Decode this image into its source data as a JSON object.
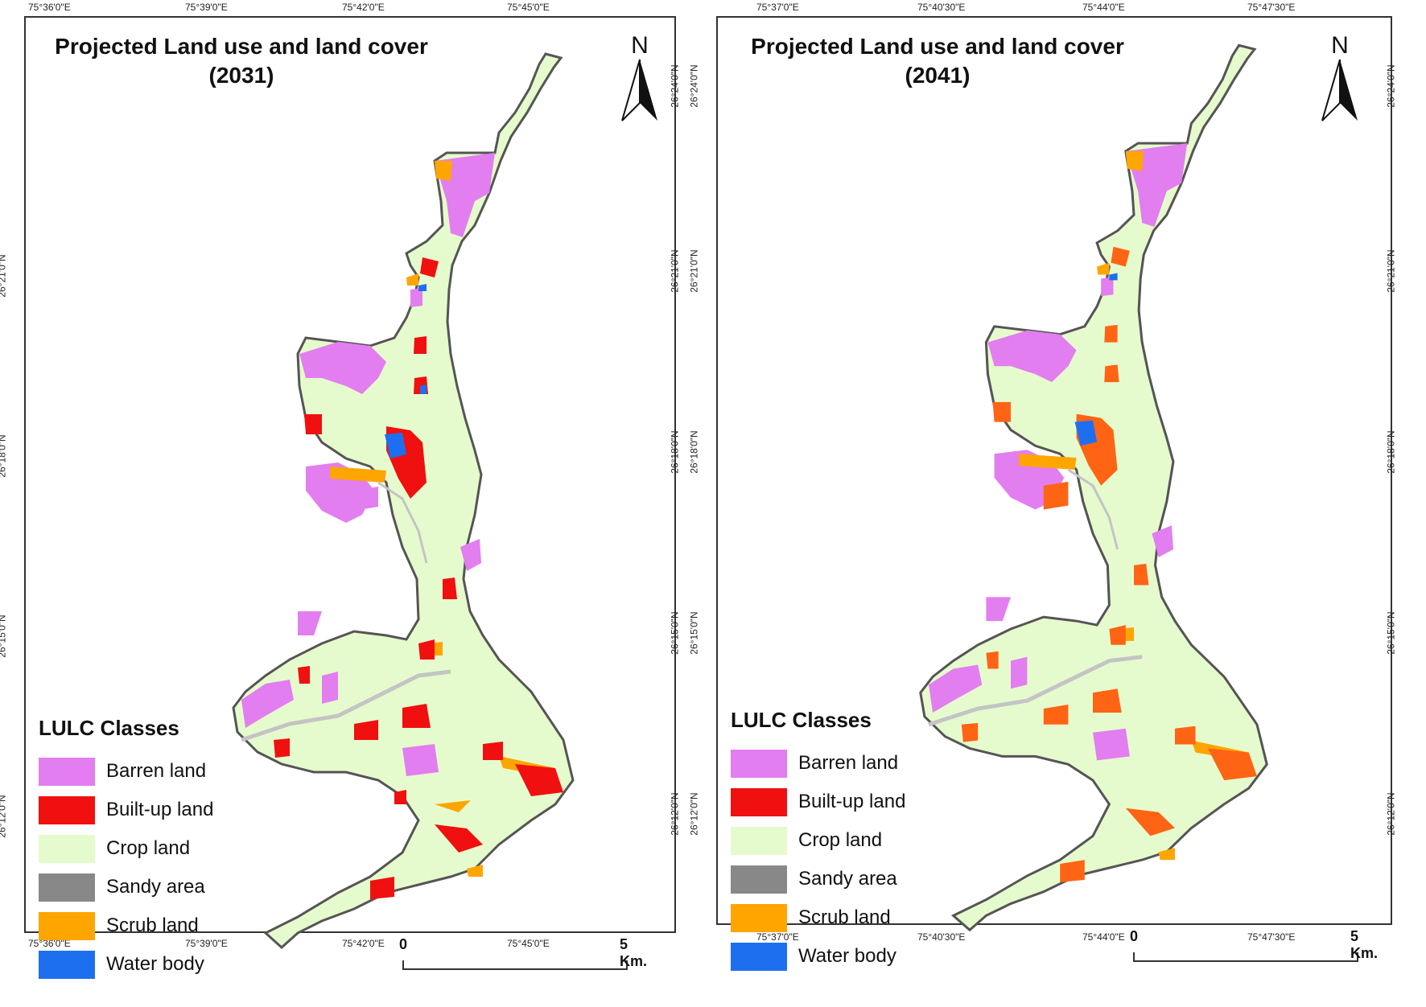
{
  "colors": {
    "barren": "#e27ef0",
    "builtup": "#f01010",
    "builtup2041": "#ff6414",
    "crop": "#e6fbcd",
    "sandy": "#c4c4c4",
    "scrub": "#ffa500",
    "water": "#1e6ff0",
    "boundary": "#555555"
  },
  "legend": {
    "title": "LULC Classes",
    "items": [
      {
        "label": "Barren land",
        "color": "#e27ef0"
      },
      {
        "label": "Built-up land",
        "color": "#f01010"
      },
      {
        "label": "Crop land",
        "color": "#e6fbcd"
      },
      {
        "label": "Sandy area",
        "color": "#888888"
      },
      {
        "label": "Scrub land",
        "color": "#ffa500"
      },
      {
        "label": "Water body",
        "color": "#1e6ff0"
      }
    ]
  },
  "maps": [
    {
      "title_line1": "Projected Land use and land cover",
      "title_line2": "(2031)",
      "north_label": "N",
      "scale": {
        "start": "0",
        "end": "5 Km."
      },
      "lon_labels": [
        "75°36'0\"E",
        "75°39'0\"E",
        "75°42'0\"E",
        "75°45'0\"E"
      ],
      "lat_labels": [
        "26°21'0\"N",
        "26°18'0\"N",
        "26°15'0\"N",
        "26°12'0\"N"
      ],
      "lat_labels_right": [
        "26°24'0\"N",
        "26°21'0\"N",
        "26°18'0\"N",
        "26°15'0\"N",
        "26°12'0\"N"
      ]
    },
    {
      "title_line1": "Projected Land use and land cover",
      "title_line2": "(2041)",
      "north_label": "N",
      "scale": {
        "start": "0",
        "end": "5 Km."
      },
      "lon_labels": [
        "75°37'0\"E",
        "75°40'30\"E",
        "75°44'0\"E",
        "75°47'30\"E"
      ],
      "lat_labels": [
        "26°24'0\"N",
        "26°21'0\"N",
        "26°18'0\"N",
        "26°15'0\"N",
        "26°12'0\"N"
      ],
      "lat_labels_right": [
        "26°24'0\"N",
        "26°21'0\"N",
        "26°18'0\"N",
        "26°15'0\"N",
        "26°12'0\"N"
      ]
    }
  ]
}
